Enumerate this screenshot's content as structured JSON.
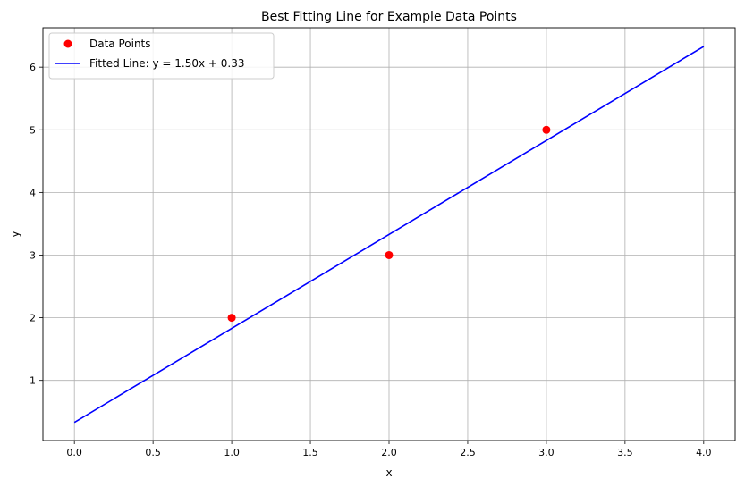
{
  "chart_data": {
    "type": "scatter",
    "title": "Best Fitting Line for Example Data Points",
    "xlabel": "x",
    "ylabel": "y",
    "xlim": [
      -0.2,
      4.2
    ],
    "ylim": [
      0.04,
      6.63
    ],
    "x_ticks": [
      0.0,
      0.5,
      1.0,
      1.5,
      2.0,
      2.5,
      3.0,
      3.5,
      4.0
    ],
    "x_tick_labels": [
      "0.0",
      "0.5",
      "1.0",
      "1.5",
      "2.0",
      "2.5",
      "3.0",
      "3.5",
      "4.0"
    ],
    "y_ticks": [
      1,
      2,
      3,
      4,
      5,
      6
    ],
    "y_tick_labels": [
      "1",
      "2",
      "3",
      "4",
      "5",
      "6"
    ],
    "grid": true,
    "legend_position": "top-left",
    "series": [
      {
        "name": "Data Points",
        "kind": "scatter",
        "color": "#ff0000",
        "x": [
          1,
          2,
          3
        ],
        "y": [
          2,
          3,
          5
        ]
      },
      {
        "name": "Fitted Line: y = 1.50x + 0.33",
        "kind": "line",
        "color": "#0000ff",
        "x": [
          0,
          4
        ],
        "y": [
          0.33,
          6.33
        ]
      }
    ]
  }
}
